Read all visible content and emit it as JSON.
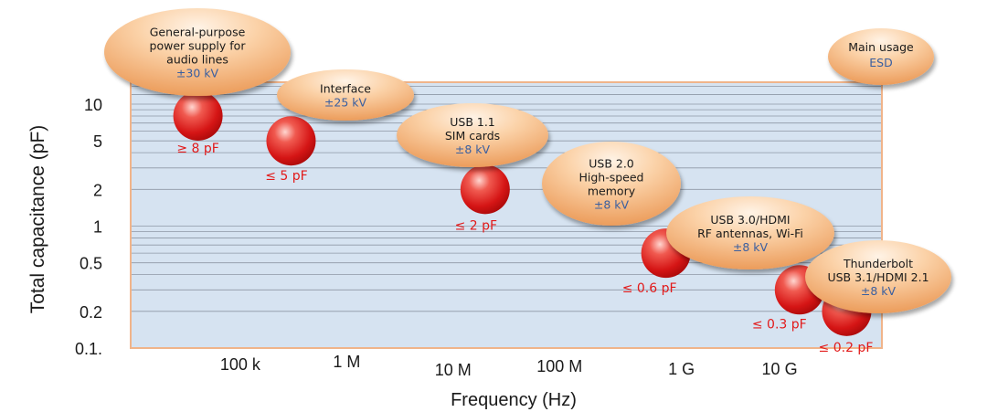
{
  "chart_data": {
    "type": "scatter",
    "title": "",
    "xlabel": "Frequency (Hz)",
    "ylabel": "Total capacitance (pF)",
    "x_scale": "log",
    "y_scale": "log",
    "x_ticks": [
      {
        "value": 100000,
        "label": "100 k"
      },
      {
        "value": 1000000,
        "label": "1 M"
      },
      {
        "value": 10000000,
        "label": "10 M"
      },
      {
        "value": 100000000,
        "label": "100 M"
      },
      {
        "value": 1000000000,
        "label": "1 G"
      },
      {
        "value": 10000000000,
        "label": "10 G"
      }
    ],
    "y_ticks": [
      {
        "value": 10,
        "label": "10"
      },
      {
        "value": 5,
        "label": "5"
      },
      {
        "value": 2,
        "label": "2"
      },
      {
        "value": 1,
        "label": "1"
      },
      {
        "value": 0.5,
        "label": "0.5"
      },
      {
        "value": 0.2,
        "label": "0.2"
      },
      {
        "value": 0.1,
        "label": "0.1."
      }
    ],
    "grid": true,
    "legend": {
      "title": "Main usage",
      "subtitle": "ESD"
    },
    "points": [
      {
        "usage": [
          "General-purpose",
          "power supply for",
          "audio lines"
        ],
        "esd": "±30 kV",
        "capacitance": "≥ 8 pF",
        "x": 40000,
        "y": 8
      },
      {
        "usage": [
          "Interface"
        ],
        "esd": "±25 kV",
        "capacitance": "≤ 5 pF",
        "x": 300000,
        "y": 5
      },
      {
        "usage": [
          "USB 1.1",
          "SIM cards"
        ],
        "esd": "±8 kV",
        "capacitance": "≤ 2 pF",
        "x": 20000000,
        "y": 2
      },
      {
        "usage": [
          "USB 2.0",
          "High-speed",
          "memory"
        ],
        "esd": "±8 kV",
        "capacitance": "≤ 0.6 pF",
        "x": 1000000000,
        "y": 0.6
      },
      {
        "usage": [
          "USB 3.0/HDMI",
          "RF antennas, Wi-Fi"
        ],
        "esd": "±8 kV",
        "capacitance": "≤ 0.3 pF",
        "x": 18000000000,
        "y": 0.3
      },
      {
        "usage": [
          "Thunderbolt",
          "USB 3.1/HDMI 2.1"
        ],
        "esd": "±8 kV",
        "capacitance": "≤ 0.2 pF",
        "x": 50000000000,
        "y": 0.2
      }
    ],
    "colors": {
      "plot_bg": "#d6e3f1",
      "plot_border": "#f0b48a",
      "bubble": "#d81c1c",
      "label_red": "#e21a1a",
      "esd_blue": "#3a5fa0",
      "grid": "#8e98a6"
    }
  }
}
